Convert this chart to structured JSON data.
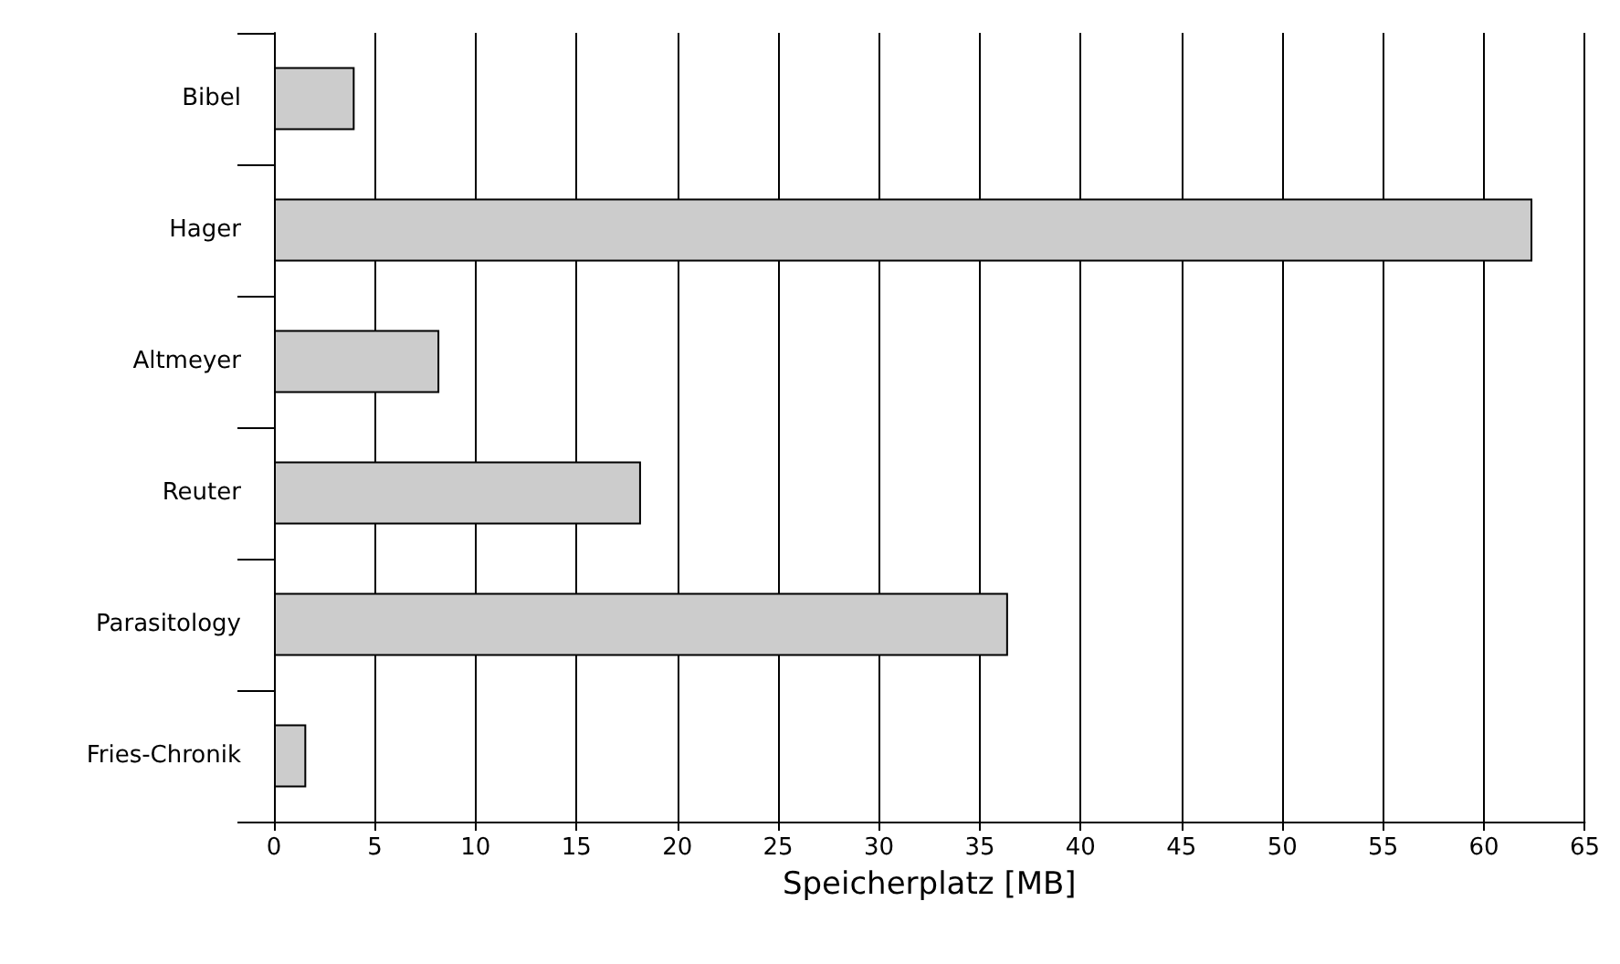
{
  "chart_data": {
    "type": "bar",
    "orientation": "horizontal",
    "xlabel": "Speicherplatz [MB]",
    "categories": [
      "Bibel",
      "Hager",
      "Altmeyer",
      "Reuter",
      "Parasitology",
      "Fries-Chronik"
    ],
    "values": [
      4.0,
      62.4,
      8.2,
      18.2,
      36.4,
      1.6
    ],
    "color": "#cccccc",
    "xlim": [
      0,
      65
    ],
    "xticks": [
      0,
      5,
      10,
      15,
      20,
      25,
      30,
      35,
      40,
      45,
      50,
      55,
      60,
      65
    ],
    "grid": "x"
  }
}
